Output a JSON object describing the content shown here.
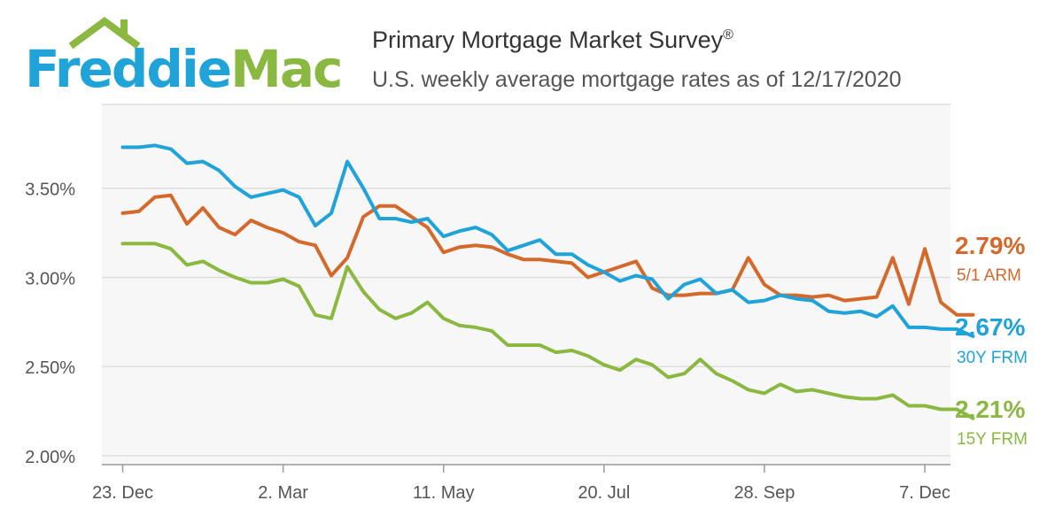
{
  "logo": {
    "text_part1": "Freddie",
    "text_part2": "Mac"
  },
  "header": {
    "title": "Primary Mortgage Market Survey",
    "title_mark": "®",
    "subtitle": "U.S. weekly average mortgage rates as of 12/17/2020"
  },
  "colors": {
    "arm": "#d4692b",
    "frm30": "#1fa3d8",
    "frm15": "#8ab840",
    "logo_blue": "#1fa3d8",
    "logo_green": "#8ab840"
  },
  "chart_data": {
    "type": "line",
    "title": "Primary Mortgage Market Survey",
    "subtitle": "U.S. weekly average mortgage rates as of 12/17/2020",
    "x_start_week": 0,
    "x_range": [
      -1.3,
      51.6
    ],
    "ylim": [
      1.95,
      3.97
    ],
    "yticks": [
      2.0,
      2.5,
      3.0,
      3.5
    ],
    "yticklabels": [
      "2.00%",
      "2.50%",
      "3.00%",
      "3.50%"
    ],
    "xticks": [
      {
        "label": "23. Dec",
        "week": 0
      },
      {
        "label": "2. Mar",
        "week": 10
      },
      {
        "label": "11. May",
        "week": 20
      },
      {
        "label": "20. Jul",
        "week": 30
      },
      {
        "label": "28. Sep",
        "week": 40
      },
      {
        "label": "7. Dec",
        "week": 50
      }
    ],
    "grid": true,
    "series": [
      {
        "name": "5/1 ARM",
        "last_label": "2.79%",
        "color": "#d4692b",
        "values": [
          3.36,
          3.37,
          3.45,
          3.46,
          3.3,
          3.39,
          3.28,
          3.24,
          3.32,
          3.28,
          3.25,
          3.2,
          3.18,
          3.01,
          3.11,
          3.34,
          3.4,
          3.4,
          3.34,
          3.28,
          3.14,
          3.17,
          3.18,
          3.17,
          3.13,
          3.1,
          3.1,
          3.09,
          3.08,
          3.0,
          3.03,
          3.06,
          3.09,
          2.94,
          2.9,
          2.9,
          2.91,
          2.91,
          2.93,
          3.11,
          2.96,
          2.9,
          2.9,
          2.89,
          2.9,
          2.87,
          2.88,
          2.89,
          3.11,
          2.85,
          3.16,
          2.86,
          2.79,
          2.79
        ]
      },
      {
        "name": "30Y FRM",
        "last_label": "2.67%",
        "color": "#1fa3d8",
        "values": [
          3.73,
          3.73,
          3.74,
          3.72,
          3.64,
          3.65,
          3.6,
          3.51,
          3.45,
          3.47,
          3.49,
          3.45,
          3.29,
          3.36,
          3.65,
          3.5,
          3.33,
          3.33,
          3.31,
          3.33,
          3.23,
          3.26,
          3.28,
          3.24,
          3.15,
          3.18,
          3.21,
          3.13,
          3.13,
          3.07,
          3.03,
          2.98,
          3.01,
          2.99,
          2.88,
          2.96,
          2.99,
          2.91,
          2.93,
          2.86,
          2.87,
          2.9,
          2.88,
          2.87,
          2.81,
          2.8,
          2.81,
          2.78,
          2.84,
          2.72,
          2.72,
          2.71,
          2.71,
          2.67
        ]
      },
      {
        "name": "15Y FRM",
        "last_label": "2.21%",
        "color": "#8ab840",
        "values": [
          3.19,
          3.19,
          3.19,
          3.16,
          3.07,
          3.09,
          3.04,
          3.0,
          2.97,
          2.97,
          2.99,
          2.95,
          2.79,
          2.77,
          3.06,
          2.92,
          2.82,
          2.77,
          2.8,
          2.86,
          2.77,
          2.73,
          2.72,
          2.7,
          2.62,
          2.62,
          2.62,
          2.58,
          2.59,
          2.56,
          2.51,
          2.48,
          2.54,
          2.51,
          2.44,
          2.46,
          2.54,
          2.46,
          2.42,
          2.37,
          2.35,
          2.4,
          2.36,
          2.37,
          2.35,
          2.33,
          2.32,
          2.32,
          2.34,
          2.28,
          2.28,
          2.26,
          2.26,
          2.21
        ]
      }
    ]
  }
}
